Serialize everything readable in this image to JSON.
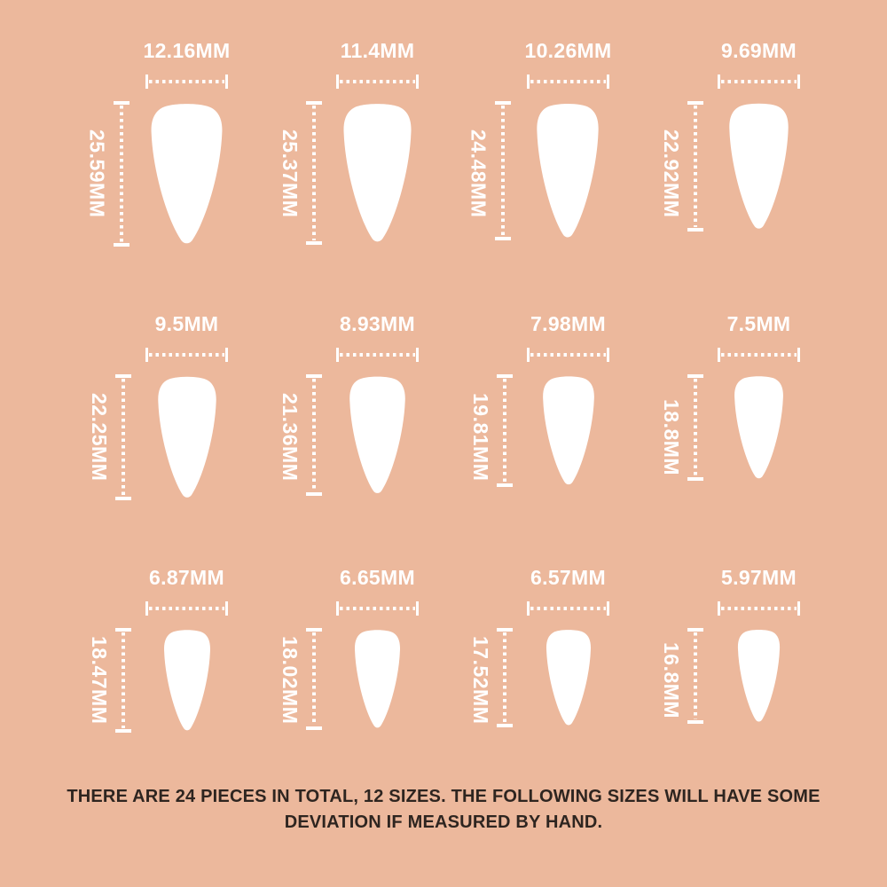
{
  "page": {
    "background_color": "#ECB89C",
    "measure_color": "#FFFFFF",
    "nail_color": "#FFFFFF",
    "footer_text_color": "#2E2520",
    "unit": "MM"
  },
  "sizes": [
    {
      "width": "12.16MM",
      "length": "25.59MM"
    },
    {
      "width": "11.4MM",
      "length": "25.37MM"
    },
    {
      "width": "10.26MM",
      "length": "24.48MM"
    },
    {
      "width": "9.69MM",
      "length": "22.92MM"
    },
    {
      "width": "9.5MM",
      "length": "22.25MM"
    },
    {
      "width": "8.93MM",
      "length": "21.36MM"
    },
    {
      "width": "7.98MM",
      "length": "19.81MM"
    },
    {
      "width": "7.5MM",
      "length": "18.8MM"
    },
    {
      "width": "6.87MM",
      "length": "18.47MM"
    },
    {
      "width": "6.65MM",
      "length": "18.02MM"
    },
    {
      "width": "6.57MM",
      "length": "17.52MM"
    },
    {
      "width": "5.97MM",
      "length": "16.8MM"
    }
  ],
  "footer": {
    "line1": "THERE ARE 24 PIECES IN TOTAL, 12 SIZES. THE FOLLOWING SIZES WILL HAVE SOME",
    "line2": "DEVIATION IF MEASURED BY HAND."
  }
}
